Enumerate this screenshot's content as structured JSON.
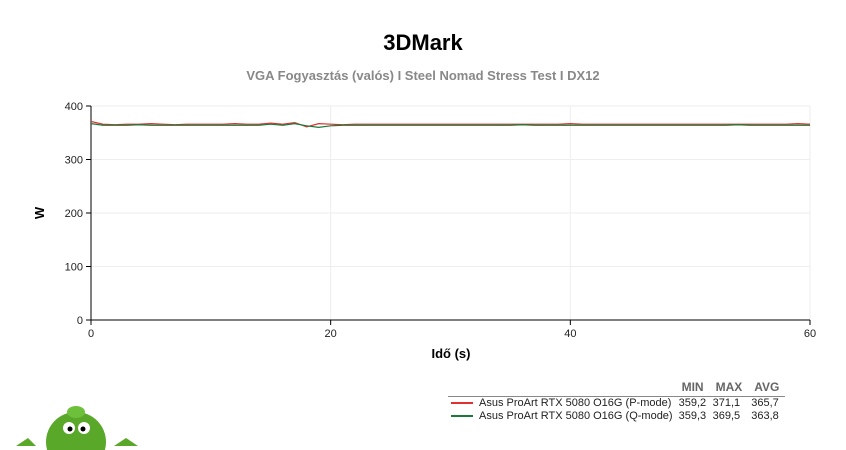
{
  "chart_data": {
    "type": "line",
    "title": "3DMark",
    "subtitle": "VGA Fogyasztás (valós) I Steel Nomad Stress Test I DX12",
    "xlabel": "Idő (s)",
    "ylabel": "W",
    "xlim": [
      0,
      60
    ],
    "ylim": [
      0,
      400
    ],
    "xticks": [
      "0",
      "20",
      "40",
      "60"
    ],
    "yticks": [
      "0",
      "100",
      "200",
      "300",
      "400"
    ],
    "grid": true,
    "x": [
      0,
      1,
      2,
      3,
      4,
      5,
      6,
      7,
      8,
      9,
      10,
      11,
      12,
      13,
      14,
      15,
      16,
      17,
      18,
      19,
      20,
      21,
      22,
      23,
      24,
      25,
      26,
      27,
      28,
      29,
      30,
      31,
      32,
      33,
      34,
      35,
      36,
      37,
      38,
      39,
      40,
      41,
      42,
      43,
      44,
      45,
      46,
      47,
      48,
      49,
      50,
      51,
      52,
      53,
      54,
      55,
      56,
      57,
      58,
      59,
      60
    ],
    "series": [
      {
        "name": "Asus ProArt RTX 5080 O16G (P-mode)",
        "color": "#e03030",
        "stats": {
          "min": "359,2",
          "max": "371,1",
          "avg": "365,7"
        },
        "values": [
          371,
          366,
          365,
          366,
          366,
          367,
          366,
          365,
          366,
          366,
          366,
          366,
          367,
          366,
          366,
          368,
          366,
          369,
          361,
          367,
          366,
          365,
          366,
          366,
          366,
          366,
          366,
          366,
          366,
          366,
          366,
          366,
          366,
          366,
          366,
          366,
          366,
          366,
          366,
          366,
          367,
          366,
          366,
          366,
          366,
          366,
          366,
          366,
          366,
          366,
          366,
          366,
          366,
          366,
          366,
          366,
          366,
          366,
          366,
          367,
          366
        ]
      },
      {
        "name": "Asus ProArt RTX 5080 O16G (Q-mode)",
        "color": "#1a7a3a",
        "stats": {
          "min": "359,3",
          "max": "369,5",
          "avg": "363,8"
        },
        "values": [
          367,
          364,
          364,
          364,
          365,
          364,
          364,
          364,
          364,
          364,
          364,
          364,
          364,
          364,
          364,
          366,
          364,
          367,
          363,
          360,
          363,
          364,
          364,
          364,
          364,
          364,
          364,
          364,
          364,
          364,
          364,
          364,
          364,
          364,
          364,
          364,
          365,
          364,
          364,
          364,
          364,
          364,
          364,
          364,
          364,
          364,
          364,
          364,
          364,
          364,
          364,
          364,
          364,
          364,
          365,
          364,
          364,
          364,
          364,
          364,
          364
        ]
      }
    ]
  },
  "legend": {
    "headers": [
      "MIN",
      "MAX",
      "AVG"
    ]
  },
  "colors": {
    "mascot": "#5aa82a"
  }
}
